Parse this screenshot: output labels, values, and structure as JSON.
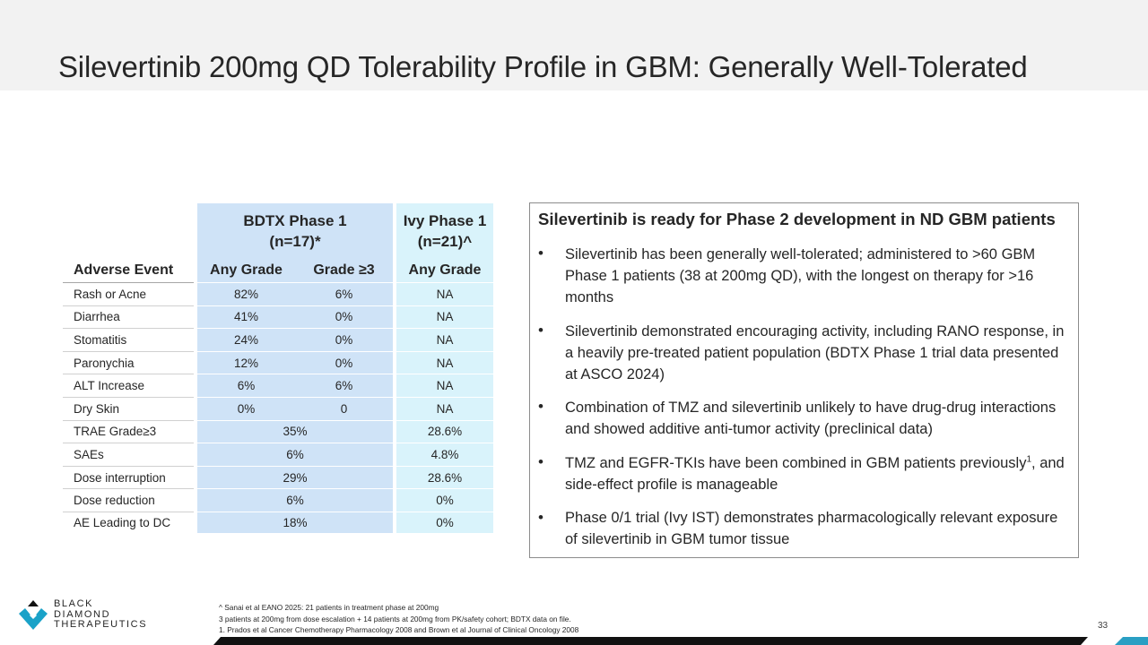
{
  "slide": {
    "title": "Silevertinib 200mg QD Tolerability Profile in GBM: Generally Well-Tolerated",
    "page_number": "33"
  },
  "table": {
    "group_headers": [
      {
        "line1": "BDTX Phase 1",
        "line2": "(n=17)*"
      },
      {
        "line1": "Ivy Phase 1",
        "line2": "(n=21)^"
      }
    ],
    "column_headers": [
      "Adverse Event",
      "Any Grade",
      "Grade ≥3",
      "Any Grade"
    ],
    "rows": [
      {
        "label": "Rash or Acne",
        "any_grade": "82%",
        "grade3": "6%",
        "ivy": "NA"
      },
      {
        "label": "Diarrhea",
        "any_grade": "41%",
        "grade3": "0%",
        "ivy": "NA"
      },
      {
        "label": "Stomatitis",
        "any_grade": "24%",
        "grade3": "0%",
        "ivy": "NA"
      },
      {
        "label": "Paronychia",
        "any_grade": "12%",
        "grade3": "0%",
        "ivy": "NA"
      },
      {
        "label": "ALT Increase",
        "any_grade": "6%",
        "grade3": "6%",
        "ivy": "NA"
      },
      {
        "label": "Dry Skin",
        "any_grade": "0%",
        "grade3": "0",
        "ivy": "NA"
      }
    ],
    "merged_rows": [
      {
        "label": "TRAE Grade≥3",
        "bdtx": "35%",
        "ivy": "28.6%"
      },
      {
        "label": "SAEs",
        "bdtx": "6%",
        "ivy": "4.8%"
      },
      {
        "label": "Dose interruption",
        "bdtx": "29%",
        "ivy": "28.6%"
      },
      {
        "label": "Dose reduction",
        "bdtx": "6%",
        "ivy": "0%"
      },
      {
        "label": "AE Leading to DC",
        "bdtx": "18%",
        "ivy": "0%"
      }
    ]
  },
  "callout": {
    "title": "Silevertinib is ready for Phase 2 development in ND GBM patients",
    "bullet_symbol": "•",
    "bullets": [
      {
        "text": "Silevertinib has been generally well-tolerated; administered to >60 GBM Phase 1 patients  (38 at 200mg QD), with the longest on therapy for >16 months"
      },
      {
        "text": "Silevertinib demonstrated encouraging activity, including RANO response, in a heavily pre-treated patient population (BDTX Phase 1 trial data presented at ASCO 2024)"
      },
      {
        "text": "Combination of TMZ and silevertinib unlikely to have drug-drug interactions and showed additive anti-tumor activity (preclinical data)"
      },
      {
        "text_before": "TMZ and EGFR-TKIs have been combined in GBM patients previously",
        "superscript": "1",
        "text_after": ", and side-effect profile is manageable"
      },
      {
        "text": "Phase 0/1 trial (Ivy IST) demonstrates pharmacologically relevant exposure of silevertinib in GBM tumor tissue"
      }
    ]
  },
  "footer": {
    "logo_lines": [
      "BLACK",
      "DIAMOND",
      "THERAPEUTICS"
    ],
    "logo_icon": "black-diamond-logo-icon",
    "footnotes": [
      "^ Sanai et al EANO 2025: 21 patients in treatment phase at 200mg",
      "3 patients at 200mg from dose escalation + 14 patients at 200mg from PK/safety cohort; BDTX data on file.",
      "1.  Prados et al Cancer Chemotherapy Pharmacology 2008 and Brown et al Journal of Clinical Oncology 2008"
    ]
  },
  "colors": {
    "header_band": "#f2f2f2",
    "bdtx_cell": "#cfe3f7",
    "ivy_cell": "#d9f3fb",
    "logo_blue": "#1aa2c8",
    "bar_black": "#111111",
    "bar_teal": "#2a9fc3"
  }
}
